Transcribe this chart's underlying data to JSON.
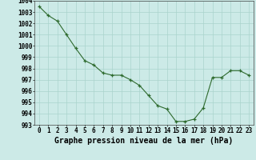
{
  "x": [
    0,
    1,
    2,
    3,
    4,
    5,
    6,
    7,
    8,
    9,
    10,
    11,
    12,
    13,
    14,
    15,
    16,
    17,
    18,
    19,
    20,
    21,
    22,
    23
  ],
  "y": [
    1003.5,
    1002.7,
    1002.2,
    1001.0,
    999.8,
    998.7,
    998.3,
    997.6,
    997.4,
    997.4,
    997.0,
    996.5,
    995.6,
    994.7,
    994.4,
    993.3,
    993.3,
    993.5,
    994.5,
    997.2,
    997.2,
    997.8,
    997.8,
    997.4
  ],
  "line_color": "#2d6a2d",
  "marker_color": "#2d6a2d",
  "bg_color": "#cceae7",
  "grid_color": "#aad4cc",
  "title": "Graphe pression niveau de la mer (hPa)",
  "ylim_min": 993,
  "ylim_max": 1004,
  "ytick_step": 1,
  "xticks": [
    0,
    1,
    2,
    3,
    4,
    5,
    6,
    7,
    8,
    9,
    10,
    11,
    12,
    13,
    14,
    15,
    16,
    17,
    18,
    19,
    20,
    21,
    22,
    23
  ],
  "tick_fontsize": 5.5,
  "xlabel_fontsize": 7.0
}
